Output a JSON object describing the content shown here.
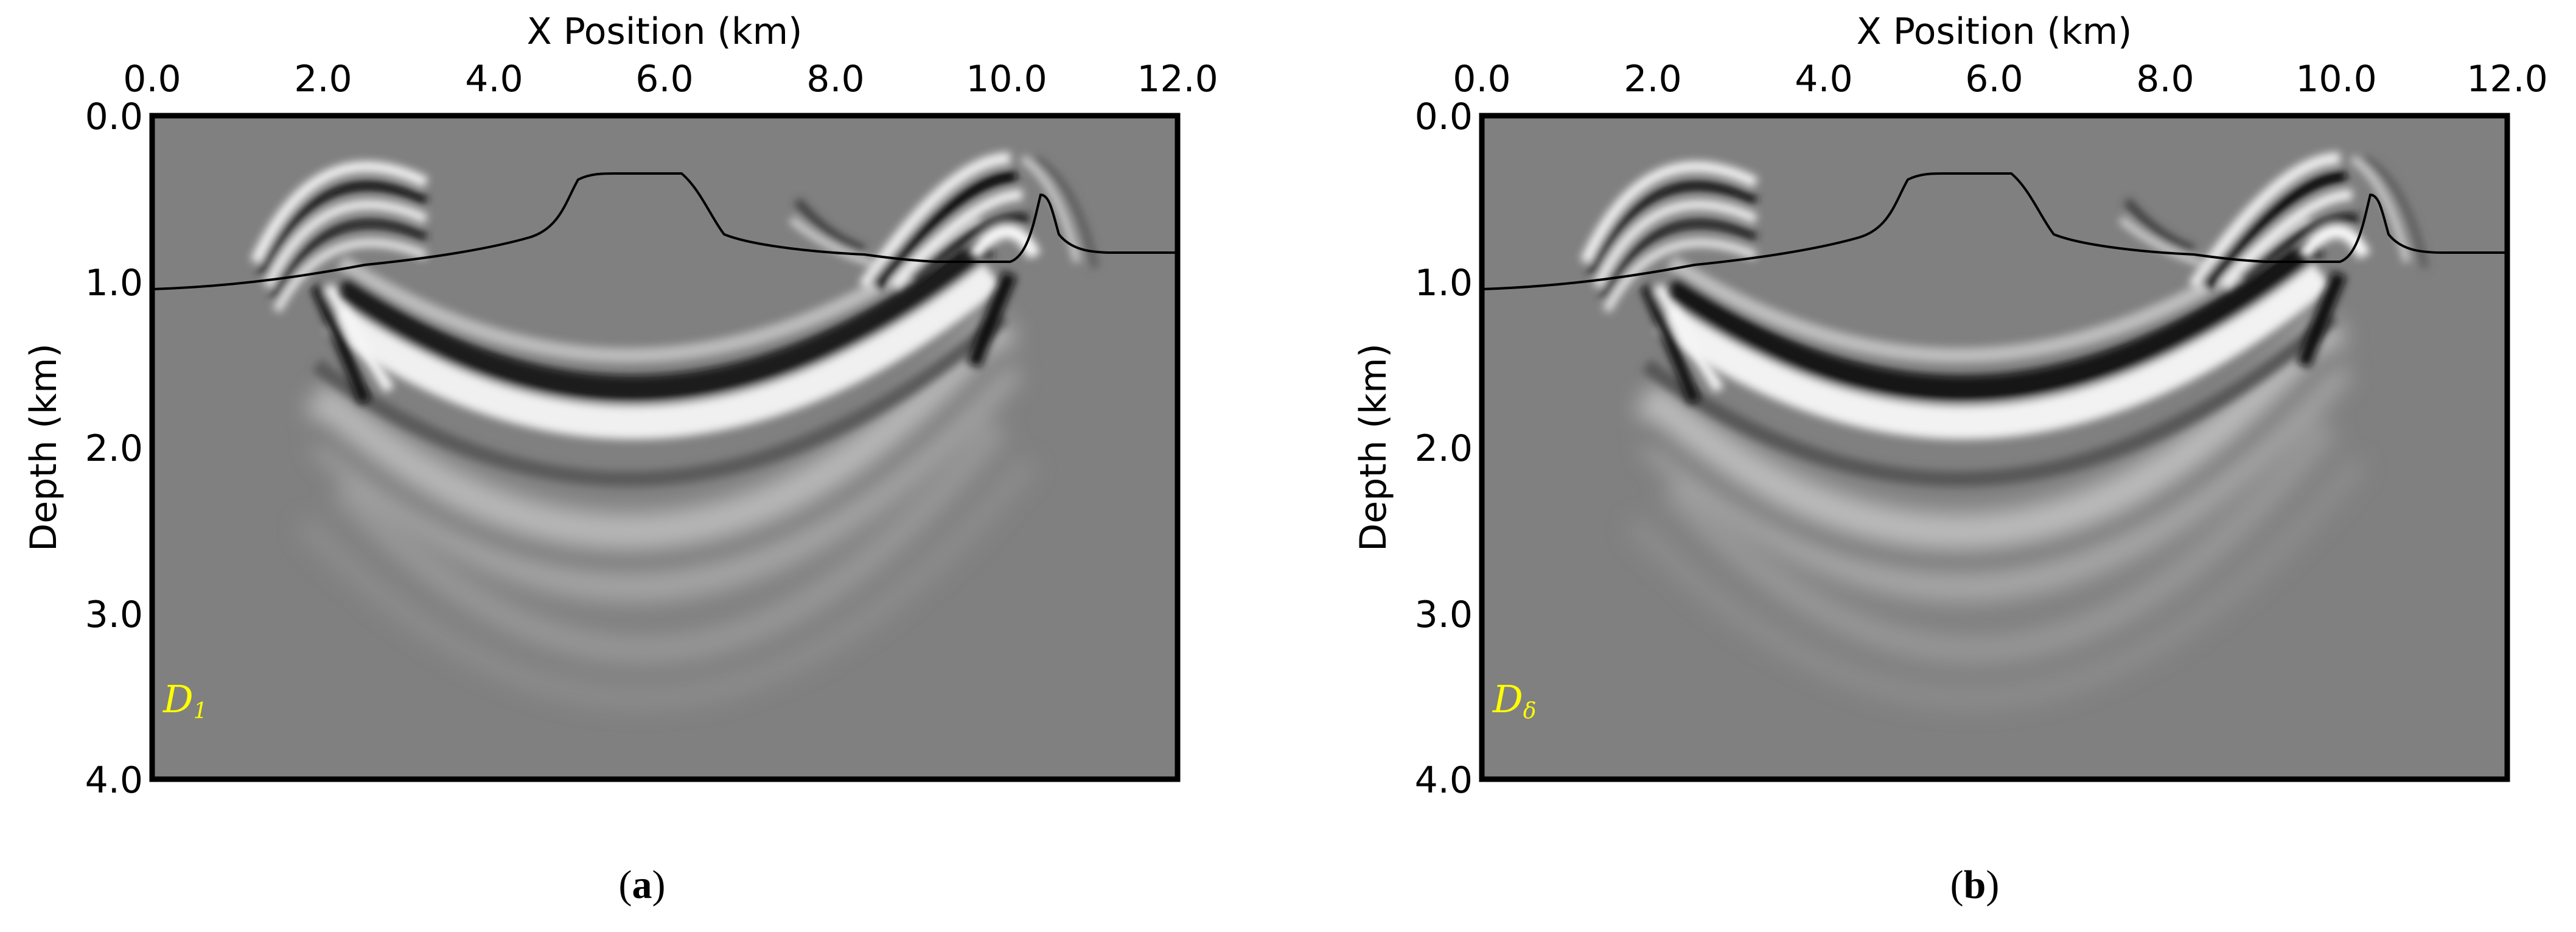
{
  "panels": [
    {
      "id": "a",
      "x_axis_title": "X Position (km)",
      "y_axis_title": "Depth (km)",
      "x_ticks": [
        "0.0",
        "2.0",
        "4.0",
        "6.0",
        "8.0",
        "10.0",
        "12.0"
      ],
      "y_ticks": [
        "0.0",
        "1.0",
        "2.0",
        "3.0",
        "4.0"
      ],
      "tag_main": "D",
      "tag_sub": "1",
      "caption_open": "(",
      "caption_letter": "a",
      "caption_close": ")"
    },
    {
      "id": "b",
      "x_axis_title": "X Position (km)",
      "y_axis_title": "Depth (km)",
      "x_ticks": [
        "0.0",
        "2.0",
        "4.0",
        "6.0",
        "8.0",
        "10.0",
        "12.0"
      ],
      "y_ticks": [
        "0.0",
        "1.0",
        "2.0",
        "3.0",
        "4.0"
      ],
      "tag_main": "D",
      "tag_sub": "δ",
      "caption_open": "(",
      "caption_letter": "b",
      "caption_close": ")"
    }
  ],
  "colors": {
    "background_gray": "#808080",
    "tag_color": "#ffff00",
    "frame": "#000000"
  }
}
